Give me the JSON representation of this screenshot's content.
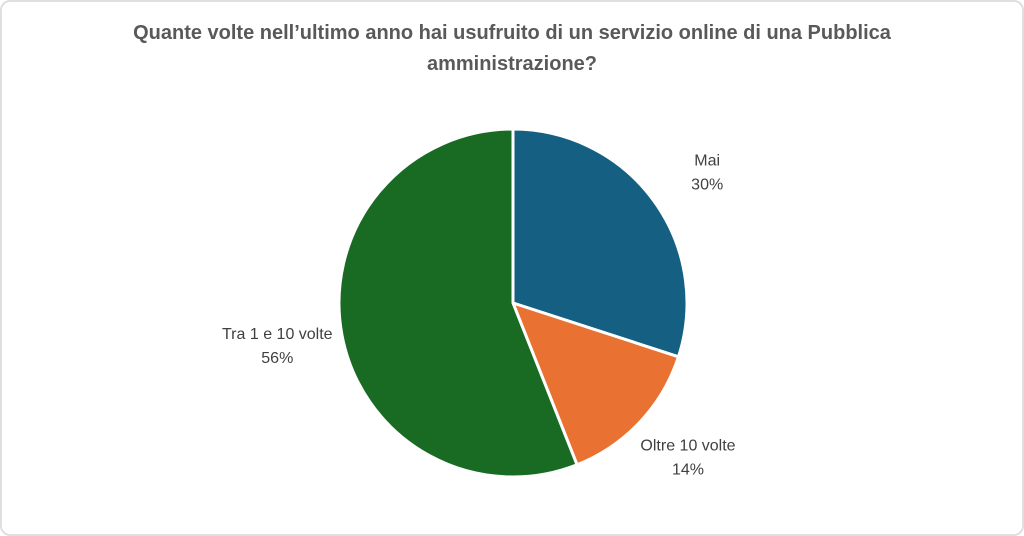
{
  "page": {
    "background_color": "#ffffff",
    "border_color": "#dfdfdf"
  },
  "chart_data": {
    "type": "pie",
    "title": "Quante volte nell’ultimo anno hai usufruito di un servizio online di una Pubblica amministrazione?",
    "title_color": "#595959",
    "label_color": "#404040",
    "separator_color": "#ffffff",
    "legend": "none",
    "labels_position": "outside-end",
    "start_angle_deg": 0,
    "direction": "clockwise",
    "slices": [
      {
        "label": "Mai",
        "value": 30,
        "value_label": "30%",
        "color": "#156082"
      },
      {
        "label": "Oltre 10 volte",
        "value": 14,
        "value_label": "14%",
        "color": "#E97132"
      },
      {
        "label": "Tra 1 e 10 volte",
        "value": 56,
        "value_label": "56%",
        "color": "#196B24"
      }
    ]
  }
}
